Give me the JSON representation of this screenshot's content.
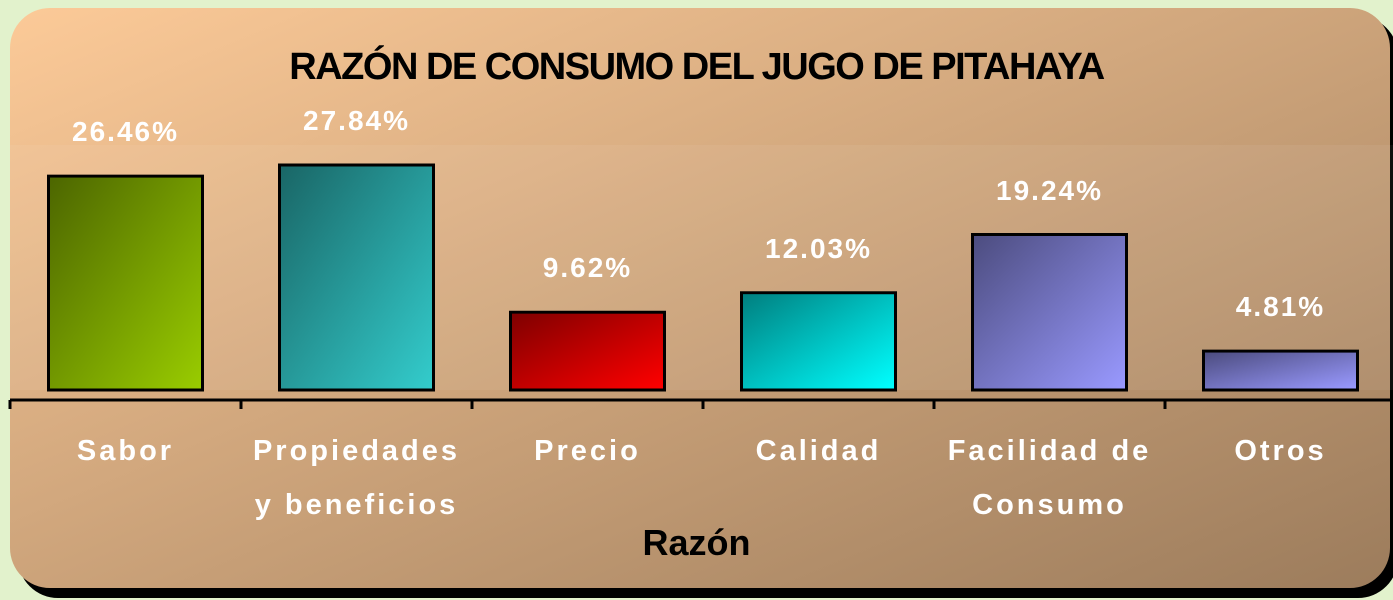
{
  "chart_data": {
    "type": "bar",
    "title": "RAZÓN DE CONSUMO DEL JUGO DE PITAHAYA",
    "x_label": "Razón",
    "categories": [
      "Sabor",
      "Propiedades y beneficios",
      "Precio",
      "Calidad",
      "Facilidad de Consumo",
      "Otros"
    ],
    "values": [
      26.46,
      27.84,
      9.62,
      12.03,
      19.24,
      4.81
    ],
    "value_labels": [
      "26.46%",
      "27.84%",
      "9.62%",
      "12.03%",
      "19.24%",
      "4.81%"
    ],
    "colors": [
      "#99cc00",
      "#33cccc",
      "#ff0000",
      "#00ffff",
      "#9999ff",
      "#9999ff"
    ]
  }
}
